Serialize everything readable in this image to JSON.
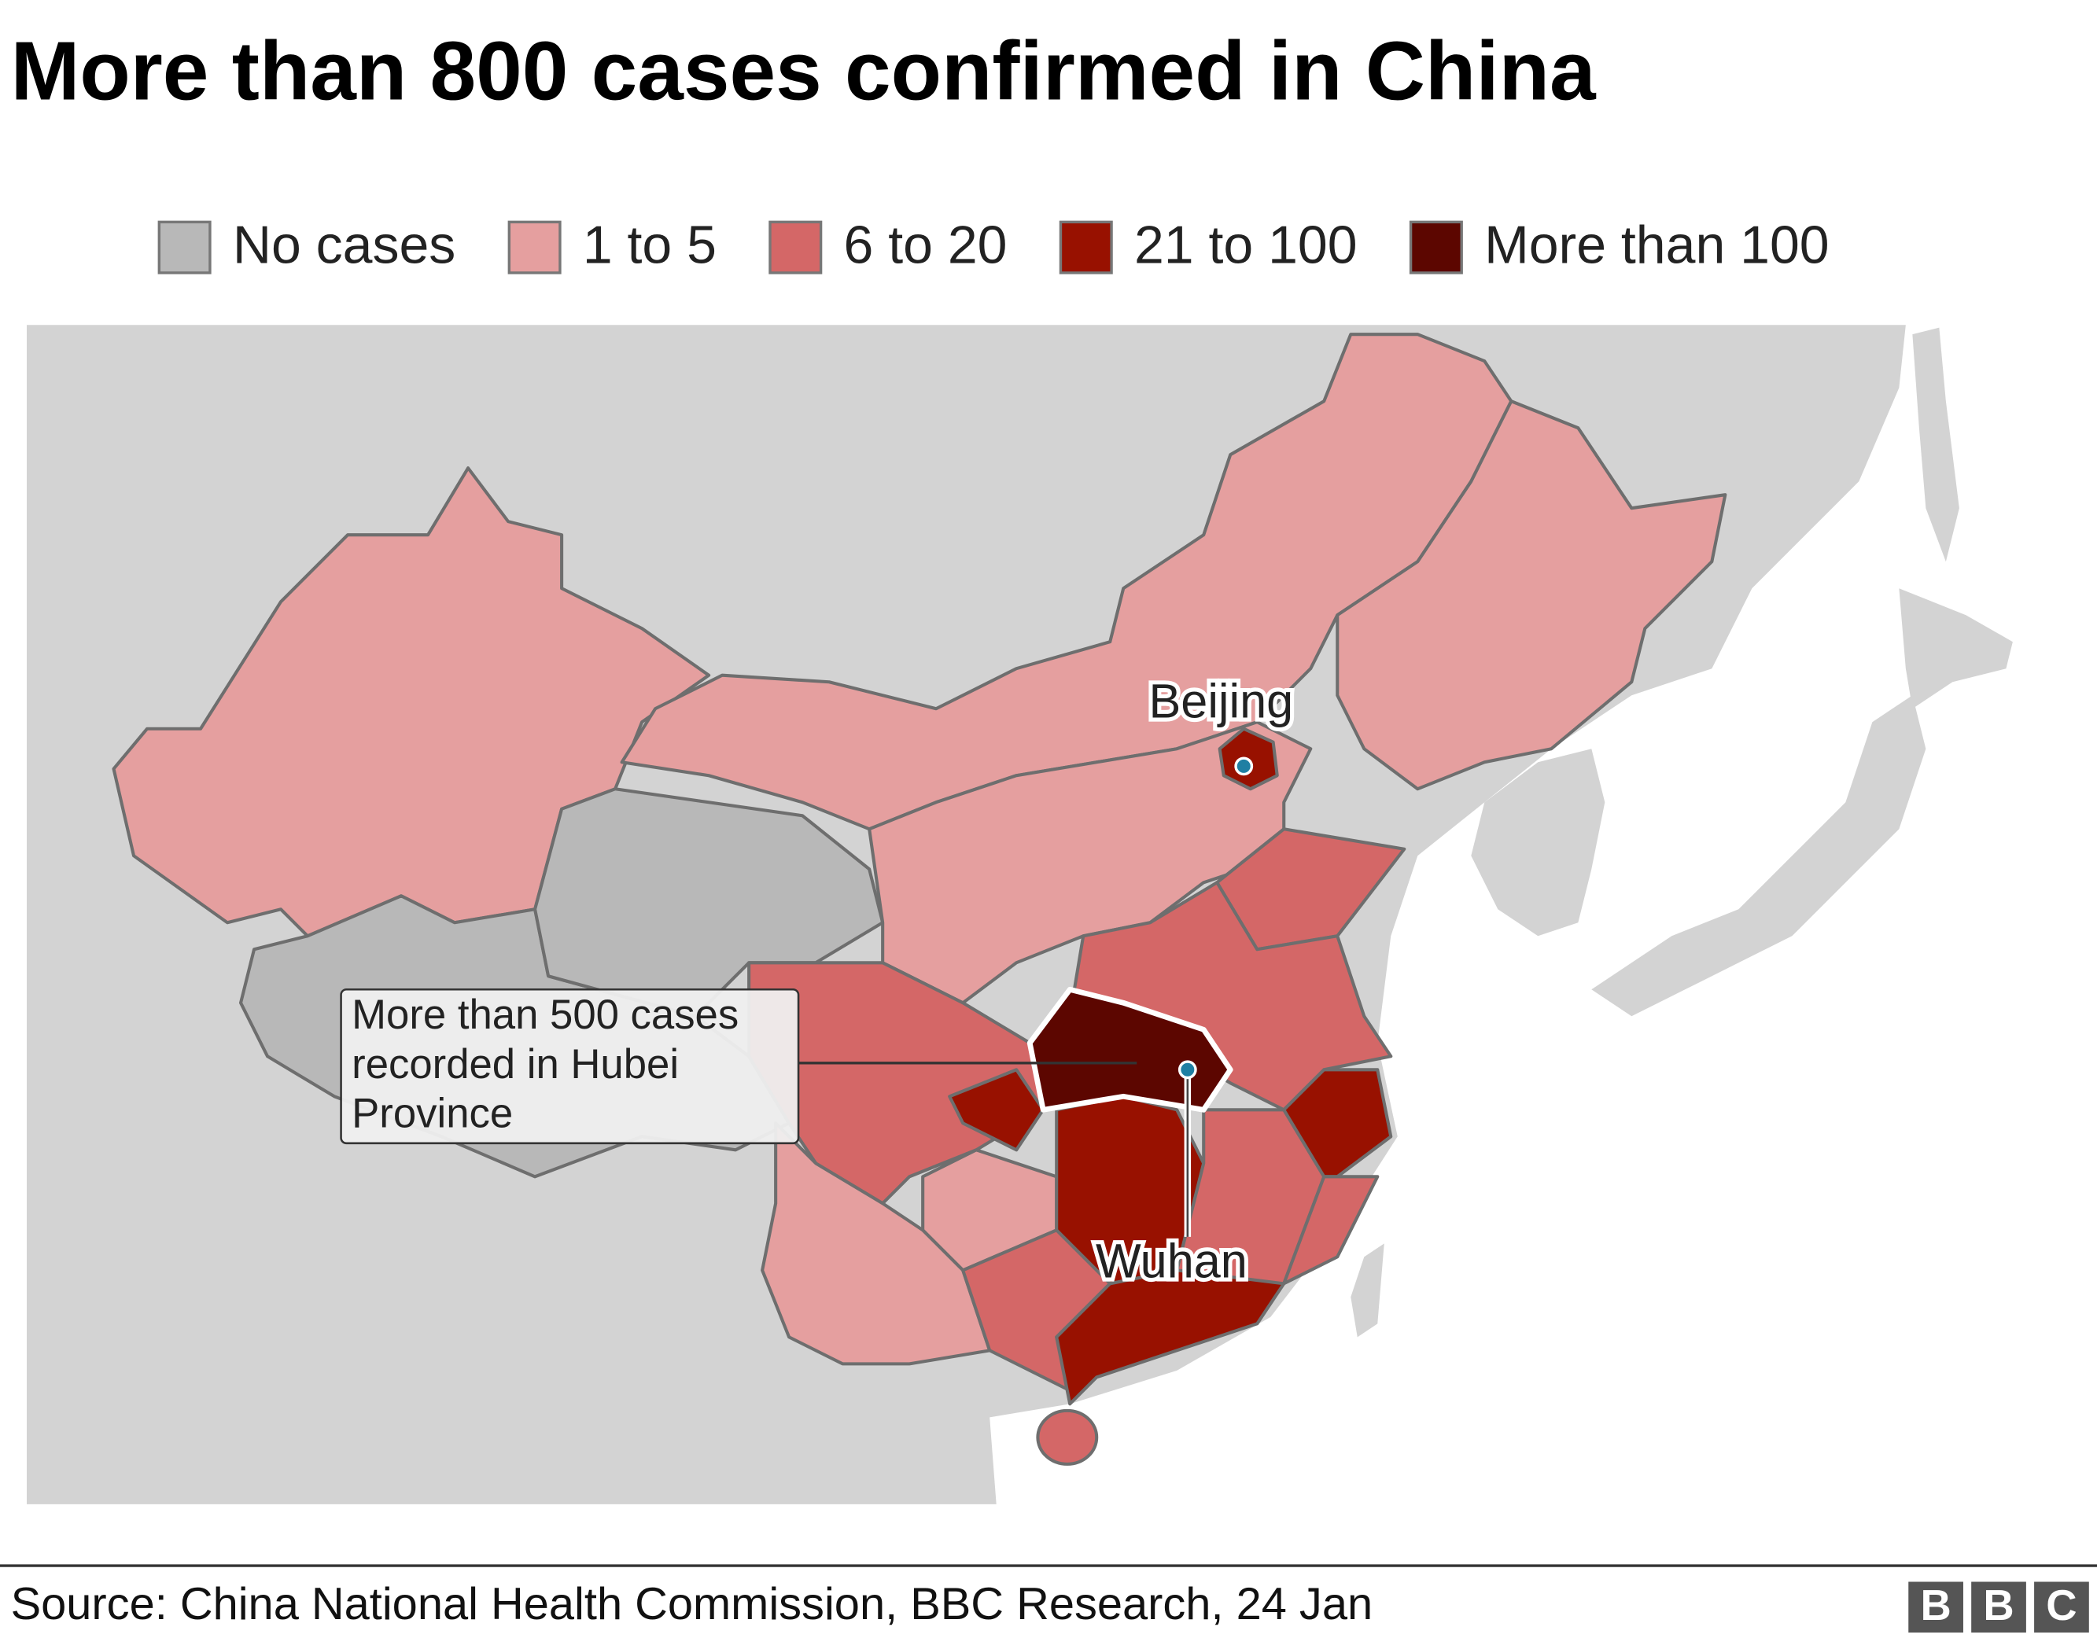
{
  "title": "More than 800 cases confirmed in China",
  "legend": {
    "items": [
      {
        "label": "No cases",
        "color": "#b8b8b8"
      },
      {
        "label": "1 to 5",
        "color": "#e59f9f"
      },
      {
        "label": "6 to 20",
        "color": "#d46767"
      },
      {
        "label": "21 to 100",
        "color": "#981100"
      },
      {
        "label": "More than 100",
        "color": "#5c0600"
      }
    ]
  },
  "map": {
    "labels": {
      "beijing": "Beijing",
      "wuhan": "Wuhan"
    },
    "annotation": [
      "More than 500 cases",
      "recorded in Hubei",
      "Province"
    ]
  },
  "footer": {
    "source": "Source: China National Health Commission, BBC Research, 24 Jan",
    "logo": [
      "B",
      "B",
      "C"
    ]
  }
}
